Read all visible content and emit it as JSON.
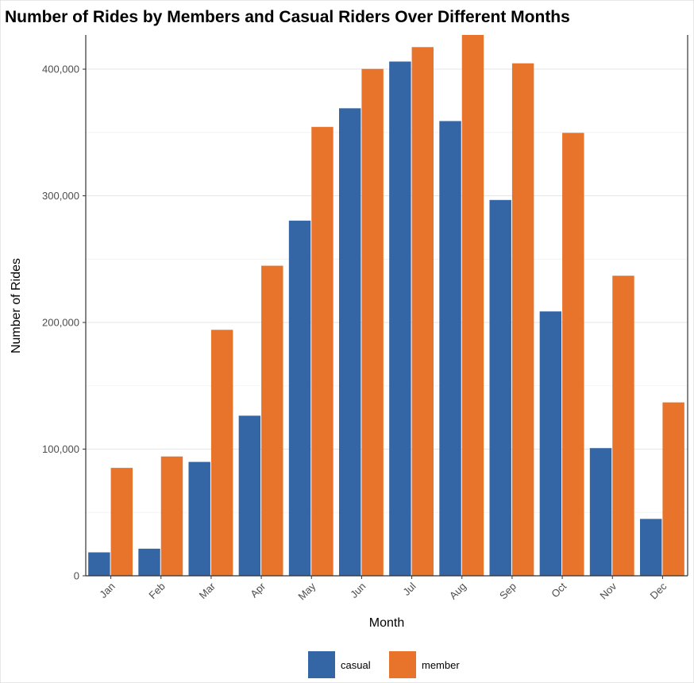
{
  "chart_data": {
    "type": "bar",
    "title": "Number of Rides by Members and Casual Riders Over Different Months",
    "xlabel": "Month",
    "ylabel": "Number of Rides",
    "categories": [
      "Jan",
      "Feb",
      "Mar",
      "Apr",
      "May",
      "Jun",
      "Jul",
      "Aug",
      "Sep",
      "Oct",
      "Nov",
      "Dec"
    ],
    "series": [
      {
        "name": "casual",
        "color": "#3465a4",
        "values": [
          18500,
          21400,
          89900,
          126400,
          280400,
          369100,
          406000,
          359000,
          296700,
          208700,
          100800,
          44900
        ]
      },
      {
        "name": "member",
        "color": "#e8732a",
        "values": [
          85200,
          94200,
          194200,
          244800,
          354400,
          400200,
          417400,
          427000,
          404600,
          349700,
          236900,
          136900
        ]
      }
    ],
    "ylim": [
      0,
      427000
    ],
    "yticks": [
      0,
      100000,
      200000,
      300000,
      400000
    ],
    "ytick_labels": [
      "0",
      "100,000",
      "200,000",
      "300,000",
      "400,000"
    ],
    "grid": true,
    "legend_position": "bottom"
  }
}
